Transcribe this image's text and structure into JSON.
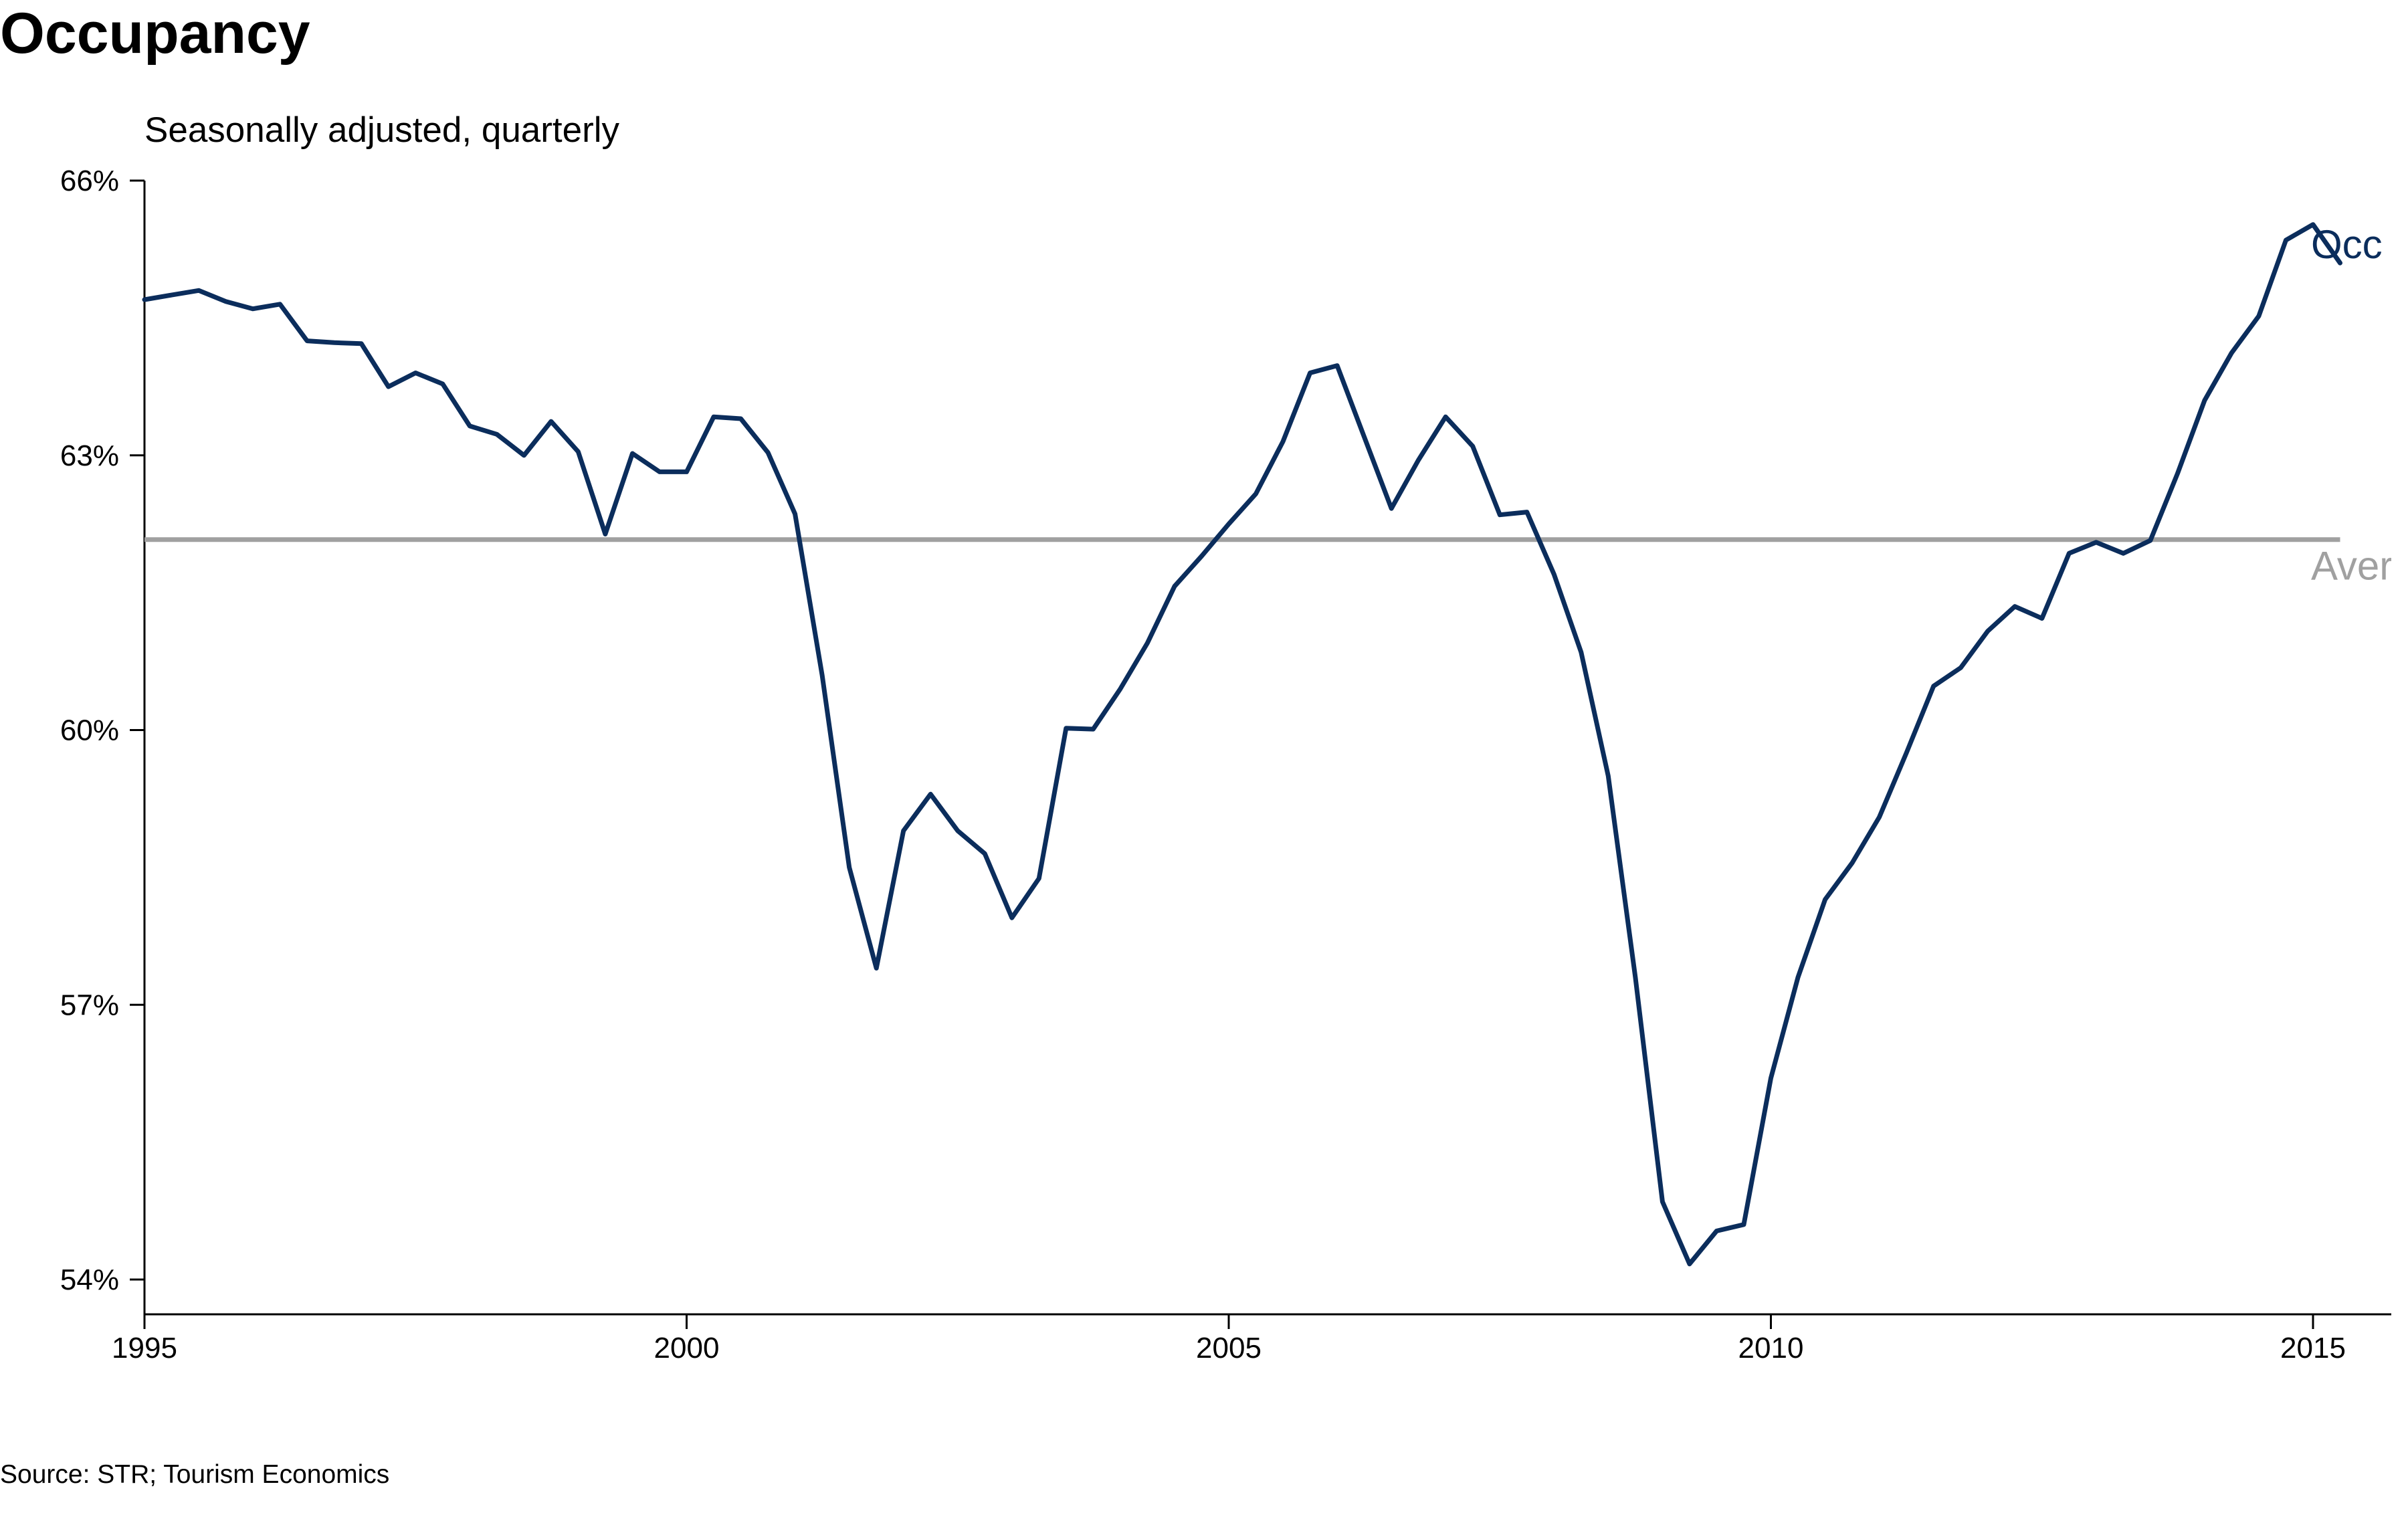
{
  "title": "Occupancy",
  "subtitle": "Seasonally adjusted, quarterly",
  "source": "Source: STR; Tourism Economics",
  "colors": {
    "occupancy": "#0b2d5c",
    "average": "#a0a0a0",
    "axis": "#000000"
  },
  "chart_data": {
    "type": "line",
    "title": "Occupancy",
    "subtitle": "Seasonally adjusted, quarterly",
    "xlabel": "",
    "ylabel": "",
    "xlim": [
      1995,
      2015.75
    ],
    "ylim": [
      53.6,
      66
    ],
    "grid": false,
    "legend": "none",
    "x_ticks": [
      1995,
      2000,
      2005,
      2010,
      2015
    ],
    "x_tick_labels": [
      "1995",
      "2000",
      "2005",
      "2010",
      "2015"
    ],
    "y_ticks": [
      54,
      57,
      60,
      63,
      66
    ],
    "y_tick_labels": [
      "54%",
      "57%",
      "60%",
      "63%",
      "66%"
    ],
    "series": [
      {
        "name": "Occ",
        "x_start": 1995.0,
        "x_step": 0.25,
        "values": [
          64.7,
          64.75,
          64.8,
          64.68,
          64.6,
          64.65,
          64.25,
          64.23,
          64.22,
          63.75,
          63.9,
          63.78,
          63.32,
          63.23,
          63.0,
          63.37,
          63.04,
          62.14,
          63.02,
          62.82,
          62.82,
          63.42,
          63.4,
          63.03,
          62.36,
          60.6,
          58.5,
          57.4,
          58.9,
          59.3,
          58.9,
          58.65,
          57.95,
          58.38,
          60.02,
          60.01,
          60.45,
          60.95,
          61.57,
          61.9,
          62.25,
          62.58,
          63.15,
          63.9,
          63.98,
          63.2,
          62.42,
          62.95,
          63.42,
          63.1,
          62.35,
          62.38,
          61.7,
          60.85,
          59.5,
          57.3,
          54.85,
          54.17,
          54.53,
          54.6,
          56.2,
          57.3,
          58.15,
          58.55,
          59.05,
          59.75,
          60.48,
          60.68,
          61.08,
          61.35,
          61.22,
          61.93,
          62.05,
          61.93,
          62.07,
          62.8,
          63.6,
          64.12,
          64.52,
          65.35,
          65.52,
          65.1
        ]
      },
      {
        "name": "Aver",
        "values": [
          62.08
        ]
      }
    ]
  }
}
